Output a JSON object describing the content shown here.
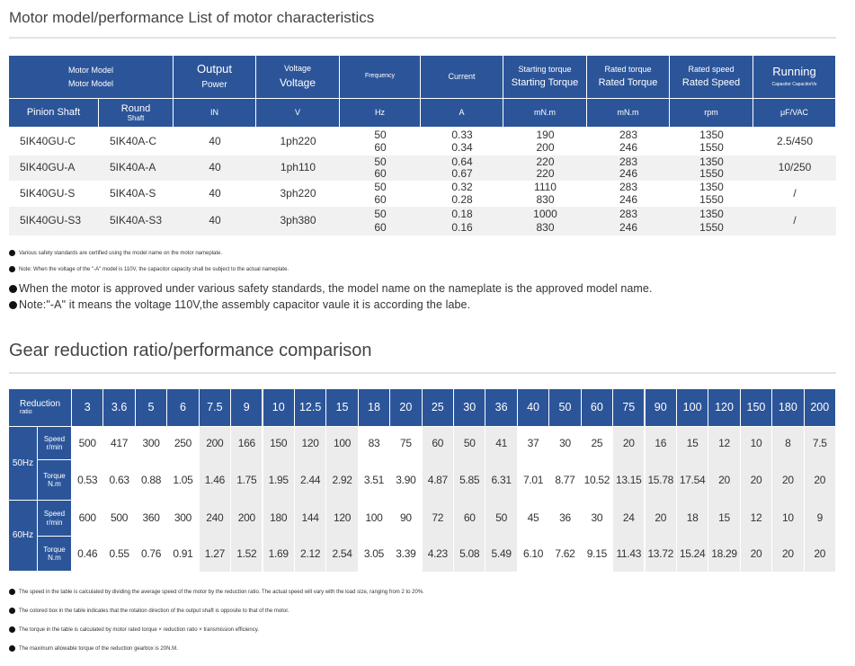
{
  "section1": {
    "title": "Motor model/performance List of motor characteristics",
    "header_top": [
      [
        "Motor Model",
        "Motor Model"
      ],
      [
        "Output",
        "Power"
      ],
      [
        "Voltage",
        "Voltage"
      ],
      [
        "Frequency"
      ],
      [
        "Current"
      ],
      [
        "Starting torque",
        "Starting Torque"
      ],
      [
        "Rated torque",
        "Rated Torque"
      ],
      [
        "Rated speed",
        "Rated Speed"
      ],
      [
        "Running",
        "Capacitor CapacitorVe"
      ]
    ],
    "header_units": [
      [
        "Pinion Shaft"
      ],
      [
        "Round",
        "Shaft"
      ],
      [
        "IN"
      ],
      [
        "V"
      ],
      [
        "Hz"
      ],
      [
        "A"
      ],
      [
        "mN.m"
      ],
      [
        "mN.m"
      ],
      [
        "rpm"
      ],
      [
        "μF/VAC"
      ]
    ],
    "rows": [
      {
        "pinion": "5IK40GU-C",
        "round": "5IK40A-C",
        "output": "40",
        "voltage": "1ph220",
        "frequency": [
          "50",
          "60"
        ],
        "current": [
          "0.33",
          "0.34"
        ],
        "starting_torque": [
          "190",
          "200"
        ],
        "rated_torque": [
          "283",
          "246"
        ],
        "rated_speed": [
          "1350",
          "1550"
        ],
        "capacitor": "2.5/450"
      },
      {
        "pinion": "5IK40GU-A",
        "round": "5IK40A-A",
        "output": "40",
        "voltage": "1ph110",
        "frequency": [
          "50",
          "60"
        ],
        "current": [
          "0.64",
          "0.67"
        ],
        "starting_torque": [
          "220",
          "220"
        ],
        "rated_torque": [
          "283",
          "246"
        ],
        "rated_speed": [
          "1350",
          "1550"
        ],
        "capacitor": "10/250"
      },
      {
        "pinion": "5IK40GU-S",
        "round": "5IK40A-S",
        "output": "40",
        "voltage": "3ph220",
        "frequency": [
          "50",
          "60"
        ],
        "current": [
          "0.32",
          "0.28"
        ],
        "starting_torque": [
          "1110",
          "830"
        ],
        "rated_torque": [
          "283",
          "246"
        ],
        "rated_speed": [
          "1350",
          "1550"
        ],
        "capacitor": "/"
      },
      {
        "pinion": "5IK40GU-S3",
        "round": "5IK40A-S3",
        "output": "40",
        "voltage": "3ph380",
        "frequency": [
          "50",
          "60"
        ],
        "current": [
          "0.18",
          "0.16"
        ],
        "starting_torque": [
          "1000",
          "830"
        ],
        "rated_torque": [
          "283",
          "246"
        ],
        "rated_speed": [
          "1350",
          "1550"
        ],
        "capacitor": "/"
      }
    ],
    "notes_small": [
      "Various safety standards are certified using the model name on the motor nameplate.",
      "Note: When the voltage of the \"-A\" model is 110V, the capacitor capacity shall be subject to the actual nameplate."
    ],
    "notes_large": [
      "When the motor is approved under various safety standards, the model name on the nameplate is the approved model name.",
      "Note:\"-A\" it means the voltage 110V,the assembly capacitor vaule it is according the labe."
    ]
  },
  "section2": {
    "title": "Gear reduction ratio/performance comparison",
    "corner": [
      "Reduction",
      "ratio"
    ],
    "ratios": [
      "3",
      "3.6",
      "5",
      "6",
      "7.5",
      "9",
      "10",
      "12.5",
      "15",
      "18",
      "20",
      "25",
      "30",
      "36",
      "40",
      "50",
      "60",
      "75",
      "90",
      "100",
      "120",
      "150",
      "180",
      "200"
    ],
    "groups": [
      {
        "label": "50Hz",
        "speed_label": "Speed r/min",
        "speed": [
          "500",
          "417",
          "300",
          "250",
          "200",
          "166",
          "150",
          "120",
          "100",
          "83",
          "75",
          "60",
          "50",
          "41",
          "37",
          "30",
          "25",
          "20",
          "16",
          "15",
          "12",
          "10",
          "8",
          "7.5"
        ],
        "torque_label": "Torque N.m",
        "torque": [
          "0.53",
          "0.63",
          "0.88",
          "1.05",
          "1.46",
          "1.75",
          "1.95",
          "2.44",
          "2.92",
          "3.51",
          "3.90",
          "4.87",
          "5.85",
          "6.31",
          "7.01",
          "8.77",
          "10.52",
          "13.15",
          "15.78",
          "17.54",
          "20",
          "20",
          "20",
          "20"
        ]
      },
      {
        "label": "60Hz",
        "speed_label": "Speed r/min",
        "speed": [
          "600",
          "500",
          "360",
          "300",
          "240",
          "200",
          "180",
          "144",
          "120",
          "100",
          "90",
          "72",
          "60",
          "50",
          "45",
          "36",
          "30",
          "24",
          "20",
          "18",
          "15",
          "12",
          "10",
          "9"
        ],
        "torque_label": "Torque N.m",
        "torque": [
          "0.46",
          "0.55",
          "0.76",
          "0.91",
          "1.27",
          "1.52",
          "1.69",
          "2.12",
          "2.54",
          "3.05",
          "3.39",
          "4.23",
          "5.08",
          "5.49",
          "6.10",
          "7.62",
          "9.15",
          "11.43",
          "13.72",
          "15.24",
          "18.29",
          "20",
          "20",
          "20"
        ]
      }
    ],
    "notes": [
      "The speed in the table is calculated by dividing the average speed of the motor by the reduction ratio. The actual speed will vary with the load size, ranging from 2 to 20%.",
      "The colored box in the table indicates that the rotation direction of the output shaft is opposite to that of the motor.",
      "The torque in the table is calculated by motor rated torque × reduction ratio × transmission efficiency.",
      "The maximum allowable torque of the reduction gearbox is 20N.M."
    ]
  }
}
